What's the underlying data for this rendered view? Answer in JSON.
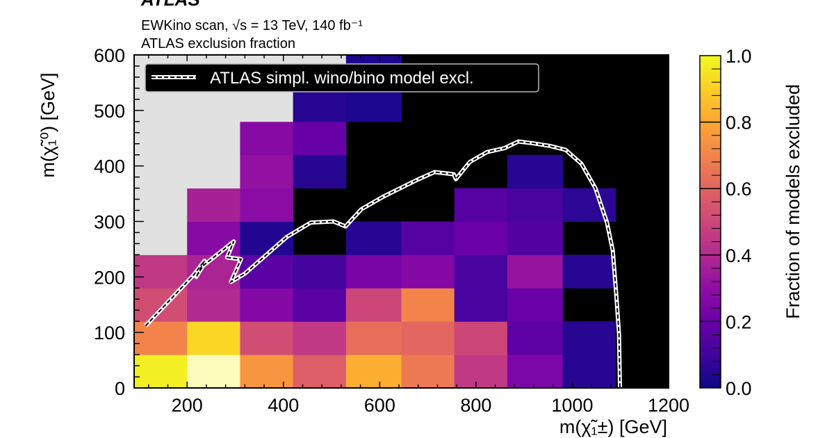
{
  "chart_data": {
    "type": "heatmap",
    "experiment_label": "ATLAS",
    "subtitle": "EWKino scan, √s = 13 TeV, 140 fb⁻¹",
    "title": "ATLAS exclusion fraction",
    "xlabel": "m(χ̃₁±) [GeV]",
    "ylabel": "m(χ̃₁⁰) [GeV]",
    "xlim": [
      90,
      1200
    ],
    "ylim": [
      0,
      600
    ],
    "x_ticks": [
      200,
      400,
      600,
      800,
      1000,
      1200
    ],
    "x_tick_labels": [
      "200",
      "400",
      "600",
      "800",
      "1000",
      "1200"
    ],
    "y_ticks": [
      0,
      100,
      200,
      300,
      400,
      500,
      600
    ],
    "y_tick_labels": [
      "0",
      "100",
      "200",
      "300",
      "400",
      "500",
      "600"
    ],
    "x_edges": [
      90,
      200,
      310,
      420,
      530,
      645,
      755,
      865,
      980,
      1090,
      1200
    ],
    "y_edges": [
      0,
      60,
      120,
      180,
      240,
      300,
      360,
      420,
      480,
      540,
      600
    ],
    "cell_note": "rows from low to high y; null = black (no models); \"g\" = grey (no scan points)",
    "values": [
      [
        0.98,
        1.0,
        0.75,
        0.58,
        0.82,
        0.67,
        0.45,
        0.25,
        0.05,
        null
      ],
      [
        0.7,
        0.92,
        0.52,
        0.45,
        0.63,
        0.61,
        0.5,
        0.17,
        0.05,
        null
      ],
      [
        0.52,
        0.4,
        0.27,
        0.16,
        0.5,
        0.7,
        0.12,
        0.2,
        null,
        null
      ],
      [
        0.45,
        0.38,
        0.16,
        0.11,
        0.24,
        0.27,
        0.12,
        0.32,
        0.05,
        null
      ],
      [
        "g",
        0.28,
        0.04,
        null,
        0.05,
        0.15,
        0.2,
        0.14,
        null,
        null
      ],
      [
        "g",
        0.37,
        0.29,
        null,
        null,
        null,
        0.15,
        0.12,
        0.06,
        null
      ],
      [
        "g",
        "g",
        0.31,
        0.05,
        null,
        null,
        null,
        0.05,
        null,
        null
      ],
      [
        "g",
        "g",
        0.28,
        0.19,
        null,
        null,
        null,
        null,
        null,
        null
      ],
      [
        "g",
        "g",
        "g",
        0.05,
        0.03,
        null,
        null,
        null,
        null,
        null
      ],
      [
        "g",
        "g",
        "g",
        "g",
        0.03,
        null,
        null,
        null,
        null,
        null
      ]
    ],
    "highlight_cell_color": {
      "row": 0,
      "col": 1,
      "color": "#fcfcbc"
    },
    "colors": {
      "no_models": "#000000",
      "no_scan": "#e1e1e1",
      "contour": "#ffffff"
    },
    "colorbar": {
      "colormap": "plasma",
      "range": [
        0,
        1
      ],
      "ticks": [
        0.0,
        0.2,
        0.4,
        0.6,
        0.8,
        1.0
      ],
      "tick_labels": [
        "0.0",
        "0.2",
        "0.4",
        "0.6",
        "0.8",
        "1.0"
      ],
      "label": "Fraction of models excluded"
    },
    "legend": {
      "placement": "top-left",
      "entries": [
        {
          "name": "ATLAS simpl. wino/bino model excl.",
          "style": "white line with black dashes"
        }
      ]
    },
    "contour": {
      "name": "ATLAS simpl. wino/bino model excl.",
      "points": [
        [
          114,
          112
        ],
        [
          214,
          204
        ],
        [
          236,
          229
        ],
        [
          219,
          200
        ],
        [
          233,
          220
        ],
        [
          297,
          264
        ],
        [
          283,
          235
        ],
        [
          312,
          232
        ],
        [
          291,
          191
        ],
        [
          320,
          206
        ],
        [
          407,
          272
        ],
        [
          457,
          298
        ],
        [
          504,
          300
        ],
        [
          529,
          291
        ],
        [
          562,
          322
        ],
        [
          606,
          344
        ],
        [
          678,
          375
        ],
        [
          714,
          389
        ],
        [
          754,
          385
        ],
        [
          758,
          376
        ],
        [
          787,
          407
        ],
        [
          823,
          425
        ],
        [
          859,
          432
        ],
        [
          888,
          444
        ],
        [
          917,
          441
        ],
        [
          954,
          436
        ],
        [
          986,
          429
        ],
        [
          1019,
          404
        ],
        [
          1048,
          360
        ],
        [
          1072,
          298
        ],
        [
          1084,
          248
        ],
        [
          1091,
          172
        ],
        [
          1097,
          98
        ],
        [
          1099,
          0
        ]
      ]
    }
  }
}
